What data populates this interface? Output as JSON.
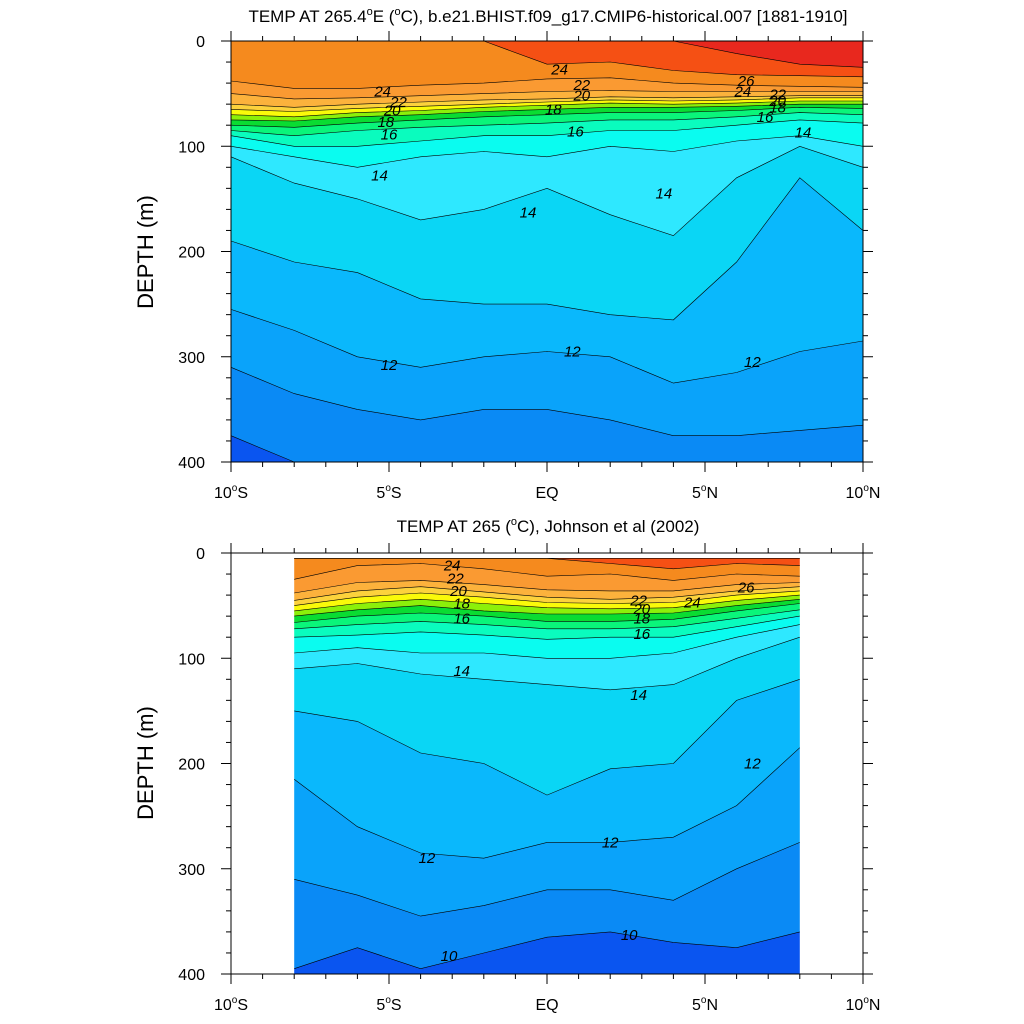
{
  "colors": {
    "deep_blue": "#0a55f0",
    "band_blue_1": "#0a8af5",
    "band_blue_2": "#0aa3fa",
    "band_blue_3": "#0ab8fc",
    "band_cyan_1": "#0ad6f5",
    "band_cyan_2": "#2ee8ff",
    "band_cyan_3": "#0afcf0",
    "band_teal": "#0afcbe",
    "band_green_1": "#0af57a",
    "band_green_2": "#0adc32",
    "band_lime": "#8cf00a",
    "band_yellow": "#fafa0a",
    "band_yellow_orange": "#fcd23c",
    "band_light_orange": "#fcb23c",
    "band_orange": "#fa9a32",
    "band_deep_orange": "#f58a1e",
    "band_red_orange": "#f55014",
    "band_red": "#e8281e"
  },
  "chart_data": [
    {
      "type": "contour",
      "title": "TEMP AT 265.4°E (°C), b.e21.BHIST.f09_g17.CMIP6-historical.007 [1881-1910]",
      "title_parts": {
        "pre": "TEMP AT 265.4",
        "deg1": "o",
        "mid1": "E (",
        "deg2": "o",
        "post": "C), b.e21.BHIST.f09_g17.CMIP6-historical.007 [1881-1910]"
      },
      "ylabel": "DEPTH (m)",
      "xlim": [
        -10,
        10
      ],
      "ylim": [
        0,
        400
      ],
      "y_reversed": true,
      "x_ticks": [
        {
          "value": -10,
          "label": "10",
          "deg": "o",
          "suffix": "S"
        },
        {
          "value": -5,
          "label": "5",
          "deg": "o",
          "suffix": "S"
        },
        {
          "value": 0,
          "label": "EQ",
          "deg": "",
          "suffix": ""
        },
        {
          "value": 5,
          "label": "5",
          "deg": "o",
          "suffix": "N"
        },
        {
          "value": 10,
          "label": "10",
          "deg": "o",
          "suffix": "N"
        }
      ],
      "y_ticks": [
        0,
        100,
        200,
        300,
        400
      ],
      "data_x_range": [
        -10,
        10
      ],
      "contour_interval": 1,
      "levels": [
        10,
        11,
        12,
        13,
        14,
        15,
        16,
        17,
        18,
        19,
        20,
        21,
        22,
        23,
        24,
        25,
        26
      ],
      "isotherms": {
        "x": [
          -10,
          -8,
          -6,
          -4,
          -2,
          0,
          2,
          4,
          6,
          8,
          10
        ],
        "depths": {
          "10": [
            375,
            410,
            415,
            415,
            415,
            415,
            415,
            415,
            415,
            415,
            415
          ],
          "11": [
            310,
            335,
            350,
            360,
            350,
            350,
            360,
            375,
            375,
            370,
            365
          ],
          "12": [
            255,
            275,
            300,
            310,
            300,
            295,
            300,
            325,
            315,
            295,
            285
          ],
          "13": [
            190,
            210,
            220,
            245,
            250,
            250,
            260,
            265,
            210,
            130,
            180
          ],
          "14": [
            110,
            135,
            150,
            170,
            160,
            140,
            165,
            185,
            130,
            100,
            120
          ],
          "15": [
            100,
            110,
            120,
            110,
            105,
            110,
            100,
            105,
            95,
            90,
            100
          ],
          "16": [
            90,
            100,
            100,
            95,
            90,
            90,
            85,
            85,
            80,
            75,
            78
          ],
          "17": [
            85,
            90,
            85,
            82,
            80,
            78,
            75,
            75,
            72,
            68,
            70
          ],
          "18": [
            80,
            82,
            78,
            75,
            72,
            70,
            68,
            68,
            66,
            63,
            64
          ],
          "19": [
            75,
            76,
            72,
            70,
            67,
            65,
            63,
            63,
            62,
            60,
            60
          ],
          "20": [
            70,
            72,
            68,
            66,
            63,
            61,
            59,
            60,
            59,
            57,
            57
          ],
          "21": [
            65,
            67,
            64,
            62,
            60,
            58,
            56,
            57,
            56,
            54,
            54
          ],
          "22": [
            60,
            63,
            60,
            58,
            56,
            55,
            53,
            54,
            53,
            52,
            52
          ],
          "23": [
            50,
            55,
            54,
            52,
            50,
            48,
            47,
            48,
            48,
            48,
            48
          ],
          "24": [
            38,
            45,
            45,
            42,
            40,
            36,
            35,
            40,
            42,
            43,
            44
          ],
          "25": [
            0,
            0,
            0,
            0,
            0,
            22,
            20,
            28,
            32,
            33,
            34
          ],
          "26": [
            0,
            0,
            0,
            0,
            0,
            0,
            0,
            0,
            12,
            22,
            25
          ]
        }
      },
      "contour_labels": [
        {
          "text": "24",
          "x": -5.2,
          "depth": 48
        },
        {
          "text": "22",
          "x": -4.7,
          "depth": 58
        },
        {
          "text": "20",
          "x": -4.9,
          "depth": 66
        },
        {
          "text": "18",
          "x": -5.1,
          "depth": 77
        },
        {
          "text": "16",
          "x": -5.0,
          "depth": 89
        },
        {
          "text": "14",
          "x": -5.3,
          "depth": 128
        },
        {
          "text": "14",
          "x": -0.6,
          "depth": 163
        },
        {
          "text": "14",
          "x": 3.7,
          "depth": 145
        },
        {
          "text": "14",
          "x": 8.1,
          "depth": 87
        },
        {
          "text": "12",
          "x": -5.0,
          "depth": 308
        },
        {
          "text": "12",
          "x": 0.8,
          "depth": 295
        },
        {
          "text": "12",
          "x": 6.5,
          "depth": 305
        },
        {
          "text": "24",
          "x": 0.4,
          "depth": 27
        },
        {
          "text": "22",
          "x": 1.1,
          "depth": 42
        },
        {
          "text": "20",
          "x": 1.1,
          "depth": 52
        },
        {
          "text": "18",
          "x": 0.2,
          "depth": 65
        },
        {
          "text": "16",
          "x": 0.9,
          "depth": 86
        },
        {
          "text": "26",
          "x": 6.3,
          "depth": 38
        },
        {
          "text": "24",
          "x": 6.2,
          "depth": 48
        },
        {
          "text": "22",
          "x": 7.3,
          "depth": 51
        },
        {
          "text": "20",
          "x": 7.3,
          "depth": 57
        },
        {
          "text": "18",
          "x": 7.3,
          "depth": 63
        },
        {
          "text": "16",
          "x": 6.9,
          "depth": 72
        }
      ]
    },
    {
      "type": "contour",
      "title": "TEMP AT 265 (°C), Johnson et al (2002)",
      "title_parts": {
        "pre": "TEMP AT 265 (",
        "deg1": "o",
        "mid1": "",
        "deg2": "",
        "post": "C), Johnson et al (2002)"
      },
      "ylabel": "DEPTH (m)",
      "xlim": [
        -10,
        10
      ],
      "ylim": [
        0,
        400
      ],
      "y_reversed": true,
      "x_ticks": [
        {
          "value": -10,
          "label": "10",
          "deg": "o",
          "suffix": "S"
        },
        {
          "value": -5,
          "label": "5",
          "deg": "o",
          "suffix": "S"
        },
        {
          "value": 0,
          "label": "EQ",
          "deg": "",
          "suffix": ""
        },
        {
          "value": 5,
          "label": "5",
          "deg": "o",
          "suffix": "N"
        },
        {
          "value": 10,
          "label": "10",
          "deg": "o",
          "suffix": "N"
        }
      ],
      "y_ticks": [
        0,
        100,
        200,
        300,
        400
      ],
      "data_x_range": [
        -8,
        8
      ],
      "data_depth_range": [
        5,
        400
      ],
      "contour_interval": 1,
      "levels": [
        10,
        11,
        12,
        13,
        14,
        15,
        16,
        17,
        18,
        19,
        20,
        21,
        22,
        23,
        24,
        25,
        26
      ],
      "isotherms": {
        "x": [
          -8,
          -6,
          -4,
          -2,
          0,
          2,
          4,
          6,
          8
        ],
        "depths": {
          "10": [
            395,
            375,
            395,
            380,
            365,
            360,
            370,
            375,
            360
          ],
          "11": [
            310,
            325,
            345,
            335,
            320,
            320,
            330,
            300,
            275
          ],
          "12": [
            215,
            260,
            285,
            290,
            275,
            275,
            270,
            240,
            185
          ],
          "13": [
            150,
            160,
            190,
            200,
            230,
            205,
            200,
            140,
            120
          ],
          "14": [
            110,
            105,
            115,
            120,
            125,
            130,
            125,
            100,
            80
          ],
          "15": [
            95,
            90,
            95,
            95,
            100,
            100,
            95,
            80,
            68
          ],
          "16": [
            80,
            78,
            75,
            78,
            82,
            80,
            80,
            70,
            60
          ],
          "17": [
            72,
            68,
            65,
            68,
            72,
            72,
            70,
            62,
            54
          ],
          "18": [
            66,
            60,
            57,
            60,
            65,
            65,
            63,
            55,
            48
          ],
          "19": [
            60,
            54,
            50,
            55,
            58,
            58,
            57,
            50,
            44
          ],
          "20": [
            55,
            48,
            44,
            48,
            52,
            53,
            52,
            45,
            40
          ],
          "21": [
            50,
            42,
            38,
            42,
            47,
            48,
            47,
            40,
            36
          ],
          "22": [
            45,
            36,
            32,
            37,
            42,
            44,
            42,
            36,
            32
          ],
          "23": [
            38,
            28,
            26,
            30,
            35,
            36,
            36,
            30,
            28
          ],
          "24": [
            25,
            12,
            10,
            15,
            22,
            20,
            26,
            20,
            22
          ],
          "25": [
            5,
            5,
            5,
            5,
            5,
            10,
            15,
            10,
            12
          ],
          "26": [
            5,
            5,
            5,
            5,
            5,
            5,
            5,
            5,
            5
          ]
        }
      },
      "contour_labels": [
        {
          "text": "24",
          "x": -3.0,
          "depth": 12
        },
        {
          "text": "22",
          "x": -2.9,
          "depth": 24
        },
        {
          "text": "20",
          "x": -2.8,
          "depth": 36
        },
        {
          "text": "18",
          "x": -2.7,
          "depth": 48
        },
        {
          "text": "16",
          "x": -2.7,
          "depth": 62
        },
        {
          "text": "14",
          "x": -2.7,
          "depth": 112
        },
        {
          "text": "14",
          "x": 2.9,
          "depth": 135
        },
        {
          "text": "12",
          "x": 6.5,
          "depth": 200
        },
        {
          "text": "12",
          "x": 2.0,
          "depth": 275
        },
        {
          "text": "12",
          "x": -3.8,
          "depth": 290
        },
        {
          "text": "10",
          "x": -3.1,
          "depth": 383
        },
        {
          "text": "10",
          "x": 2.6,
          "depth": 363
        },
        {
          "text": "22",
          "x": 2.9,
          "depth": 45
        },
        {
          "text": "20",
          "x": 3.0,
          "depth": 53
        },
        {
          "text": "18",
          "x": 3.0,
          "depth": 62
        },
        {
          "text": "16",
          "x": 3.0,
          "depth": 77
        },
        {
          "text": "24",
          "x": 4.6,
          "depth": 47
        },
        {
          "text": "26",
          "x": 6.3,
          "depth": 33
        }
      ]
    }
  ]
}
